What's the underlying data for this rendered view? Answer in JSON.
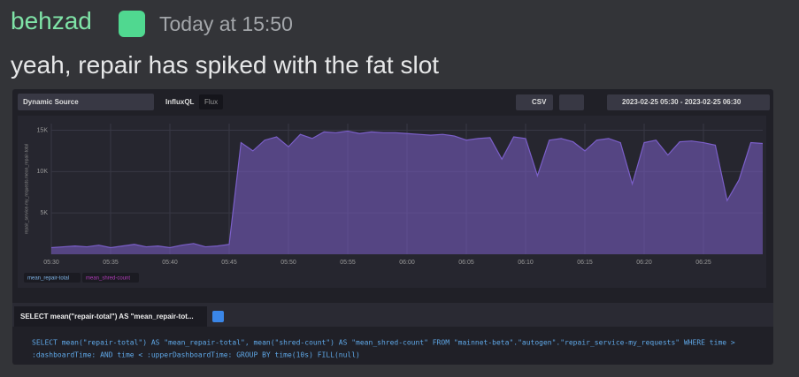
{
  "message": {
    "author": "behzad",
    "timestamp": "Today at 15:50",
    "text": "yeah, repair has spiked with the fat slot"
  },
  "toolbar": {
    "source": "Dynamic Source",
    "lang1": "InfluxQL",
    "lang2": "Flux",
    "csv": "CSV",
    "range": "2023-02-25 05:30 - 2023-02-25 06:30"
  },
  "query": {
    "tab": "SELECT mean(\"repair-total\") AS \"mean_repair-tot...",
    "line1": "SELECT mean(\"repair-total\") AS \"mean_repair-total\", mean(\"shred-count\") AS \"mean_shred-count\" FROM \"mainnet-beta\".\"autogen\".\"repair_service-my_requests\" WHERE time >",
    "line2": ":dashboardTime: AND time < :upperDashboardTime: GROUP BY time(10s) FILL(null)"
  },
  "chart_data": {
    "type": "area",
    "y_label": "repair_service-my_requests.mean_repair-total",
    "x": [
      "05:30",
      "05:31",
      "05:32",
      "05:33",
      "05:34",
      "05:35",
      "05:36",
      "05:37",
      "05:38",
      "05:39",
      "05:40",
      "05:41",
      "05:42",
      "05:43",
      "05:44",
      "05:45",
      "05:46",
      "05:47",
      "05:48",
      "05:49",
      "05:50",
      "05:51",
      "05:52",
      "05:53",
      "05:54",
      "05:55",
      "05:56",
      "05:57",
      "05:58",
      "05:59",
      "06:00",
      "06:01",
      "06:02",
      "06:03",
      "06:04",
      "06:05",
      "06:06",
      "06:07",
      "06:08",
      "06:09",
      "06:10",
      "06:11",
      "06:12",
      "06:13",
      "06:14",
      "06:15",
      "06:16",
      "06:17",
      "06:18",
      "06:19",
      "06:20",
      "06:21",
      "06:22",
      "06:23",
      "06:24",
      "06:25",
      "06:26",
      "06:27",
      "06:28",
      "06:29",
      "06:30"
    ],
    "series": [
      {
        "name": "mean_repair-total",
        "color": "#7b5fc9",
        "values": [
          800,
          900,
          1000,
          900,
          1100,
          800,
          1000,
          1200,
          900,
          1000,
          800,
          1100,
          1300,
          900,
          1000,
          1200,
          13500,
          12500,
          13800,
          14200,
          13000,
          14500,
          14000,
          14800,
          14700,
          14900,
          14600,
          14800,
          14700,
          14700,
          14600,
          14500,
          14400,
          14500,
          14300,
          13800,
          14000,
          14100,
          11500,
          14200,
          14000,
          9500,
          13800,
          14000,
          13600,
          12500,
          13800,
          14000,
          13500,
          8500,
          13500,
          13800,
          12000,
          13600,
          13700,
          13500,
          13200,
          6500,
          9000,
          13500,
          13400
        ]
      },
      {
        "name": "mean_shred-count",
        "color": "#b03bb8",
        "values": [
          null,
          null,
          null,
          null,
          null,
          null,
          null,
          null,
          null,
          null,
          null,
          null,
          null,
          null,
          null,
          null,
          null,
          null,
          null,
          null,
          null,
          null,
          null,
          null,
          null,
          null,
          null,
          null,
          null,
          null,
          null,
          null,
          null,
          null,
          null,
          null,
          null,
          null,
          null,
          null,
          null,
          null,
          null,
          null,
          null,
          null,
          null,
          null,
          null,
          null,
          null,
          null,
          null,
          null,
          null,
          null,
          null,
          null,
          null,
          null,
          null
        ]
      }
    ],
    "xlim": [
      "05:30",
      "06:30"
    ],
    "xticks": [
      "05:30",
      "05:35",
      "05:40",
      "05:45",
      "05:50",
      "05:55",
      "06:00",
      "06:05",
      "06:10",
      "06:15",
      "06:20",
      "06:25"
    ],
    "ylim": [
      0,
      15800
    ],
    "yticks": [
      {
        "value": 5000,
        "label": "5K"
      },
      {
        "value": 10000,
        "label": "10K"
      },
      {
        "value": 15000,
        "label": "15K"
      }
    ],
    "grid": true
  }
}
